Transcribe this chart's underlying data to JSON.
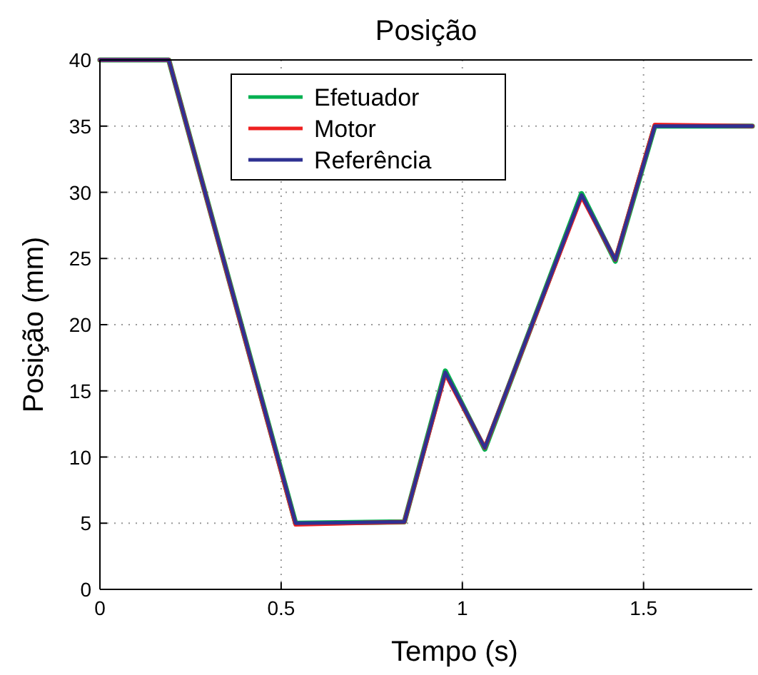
{
  "chart_data": {
    "type": "line",
    "title": "Posição",
    "xlabel": "Tempo (s)",
    "ylabel": "Posição (mm)",
    "xlim": [
      0,
      1.8
    ],
    "ylim": [
      0,
      40
    ],
    "xticks": [
      0,
      0.5,
      1,
      1.5
    ],
    "yticks": [
      0,
      5,
      10,
      15,
      20,
      25,
      30,
      35,
      40
    ],
    "grid": true,
    "legend": "top left",
    "line_style": "solid",
    "series": [
      {
        "name": "Efetuador",
        "color": "#00b050",
        "x": [
          0,
          0.19,
          0.54,
          0.84,
          0.953,
          1.062,
          1.329,
          1.422,
          1.531,
          1.8
        ],
        "values": [
          40,
          40,
          5,
          5.1,
          16.5,
          10.6,
          29.9,
          24.8,
          35,
          35
        ]
      },
      {
        "name": "Motor",
        "color": "#ee2020",
        "x": [
          0,
          0.19,
          0.54,
          0.84,
          0.953,
          1.062,
          1.329,
          1.422,
          1.531,
          1.8
        ],
        "values": [
          40,
          40,
          4.9,
          5.1,
          16.3,
          10.7,
          29.7,
          24.9,
          35.1,
          35
        ]
      },
      {
        "name": "Referência",
        "color": "#2e3192",
        "x": [
          0,
          0.19,
          0.54,
          0.84,
          0.953,
          1.062,
          1.329,
          1.422,
          1.531,
          1.8
        ],
        "values": [
          40,
          40,
          5,
          5.1,
          16.4,
          10.7,
          29.8,
          24.9,
          35,
          35
        ]
      }
    ]
  }
}
